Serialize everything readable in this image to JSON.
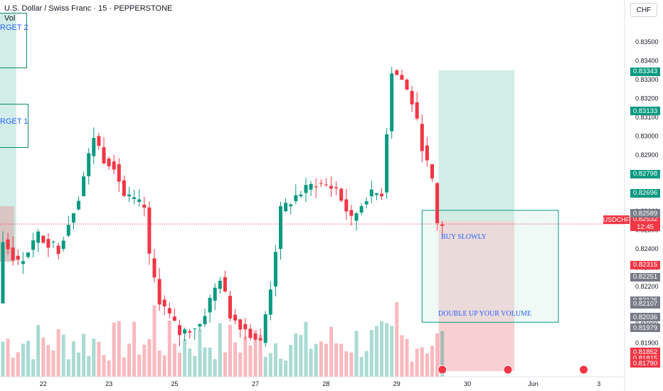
{
  "header": {
    "title": "U.S. Dollar / Swiss Franc · 15 · PEPPERSTONE",
    "volume_label": "Vol",
    "currency_button": "CHF"
  },
  "annotations": {
    "target2": "RGET 2",
    "target1": "RGET 1",
    "buy_slowly": "BUY SLOWLY",
    "double_up": "DOUBLE UP YOUR VOLUME"
  },
  "symbol_tag": "USDCHF",
  "current_price": {
    "price": "0.82532",
    "countdown": "12:45"
  },
  "colors": {
    "up": "#089981",
    "down": "#f23645",
    "profit_zone": "#d1ede6",
    "loss_zone": "#f8d0d3",
    "tag_green": "#089981",
    "tag_red": "#f23645",
    "tag_gray": "#787b86"
  },
  "price_tags": [
    {
      "value": "0.83343",
      "price": 0.83343,
      "kind": "green"
    },
    {
      "value": "0.83133",
      "price": 0.83133,
      "kind": "green"
    },
    {
      "value": "0.82798",
      "price": 0.82798,
      "kind": "green"
    },
    {
      "value": "0.82696",
      "price": 0.82696,
      "kind": "green"
    },
    {
      "value": "0.82589",
      "price": 0.82589,
      "kind": "gray"
    },
    {
      "value": "0.82315",
      "price": 0.82315,
      "kind": "red"
    },
    {
      "value": "0.82251",
      "price": 0.82251,
      "kind": "gray"
    },
    {
      "value": "0.82126",
      "price": 0.82126,
      "kind": "gray"
    },
    {
      "value": "0.82107",
      "price": 0.82107,
      "kind": "gray"
    },
    {
      "value": "0.82036",
      "price": 0.82036,
      "kind": "gray"
    },
    {
      "value": "0.81979",
      "price": 0.81979,
      "kind": "gray"
    },
    {
      "value": "0.81852",
      "price": 0.81852,
      "kind": "red"
    },
    {
      "value": "0.81815",
      "price": 0.81815,
      "kind": "red"
    },
    {
      "value": "0.81790",
      "price": 0.8179,
      "kind": "red"
    }
  ],
  "chart_data": {
    "type": "candlestick",
    "title": "U.S. Dollar / Swiss Franc · 15 · PEPPERSTONE",
    "ylim": [
      0.8172,
      0.8361
    ],
    "y_ticks": [
      "0.83500",
      "0.83400",
      "0.83300",
      "0.83200",
      "0.83100",
      "0.83000",
      "0.82900",
      "0.82800",
      "0.82700",
      "0.82600",
      "0.82500",
      "0.82400",
      "0.82300",
      "0.82200",
      "0.82100",
      "0.82000",
      "0.81900",
      "0.81800"
    ],
    "x_ticks": [
      "22",
      "23",
      "25",
      "27",
      "28",
      "29",
      "30",
      "Jun",
      "3"
    ],
    "x_tick_index": [
      8,
      21,
      34,
      50,
      64,
      78,
      92,
      105,
      118
    ],
    "price_path": [
      {
        "i": 0,
        "p": 0.8211
      },
      {
        "i": 1,
        "p": 0.8245
      },
      {
        "i": 4,
        "p": 0.8232
      },
      {
        "i": 8,
        "p": 0.8247
      },
      {
        "i": 12,
        "p": 0.824
      },
      {
        "i": 16,
        "p": 0.8268
      },
      {
        "i": 19,
        "p": 0.83
      },
      {
        "i": 21,
        "p": 0.8288
      },
      {
        "i": 23,
        "p": 0.8285
      },
      {
        "i": 25,
        "p": 0.8268
      },
      {
        "i": 29,
        "p": 0.8262
      },
      {
        "i": 30,
        "p": 0.8235
      },
      {
        "i": 32,
        "p": 0.8213
      },
      {
        "i": 36,
        "p": 0.8195
      },
      {
        "i": 40,
        "p": 0.82
      },
      {
        "i": 44,
        "p": 0.8225
      },
      {
        "i": 46,
        "p": 0.8205
      },
      {
        "i": 50,
        "p": 0.8195
      },
      {
        "i": 52,
        "p": 0.819
      },
      {
        "i": 54,
        "p": 0.822
      },
      {
        "i": 56,
        "p": 0.826
      },
      {
        "i": 59,
        "p": 0.8268
      },
      {
        "i": 63,
        "p": 0.8275
      },
      {
        "i": 67,
        "p": 0.8272
      },
      {
        "i": 70,
        "p": 0.8255
      },
      {
        "i": 73,
        "p": 0.8268
      },
      {
        "i": 76,
        "p": 0.827
      },
      {
        "i": 78,
        "p": 0.8335
      },
      {
        "i": 80,
        "p": 0.833
      },
      {
        "i": 82,
        "p": 0.8318
      },
      {
        "i": 84,
        "p": 0.8295
      },
      {
        "i": 86,
        "p": 0.8275
      },
      {
        "i": 87,
        "p": 0.8253
      }
    ],
    "last_index": 87,
    "last_price": 0.82532,
    "positions": [
      {
        "label": "long-position-1",
        "x_start": 86,
        "x_end": 101,
        "entry": 0.8255,
        "target": 0.8335,
        "stop": 0.8175
      },
      {
        "label": "long-position-2",
        "x_start": 83,
        "x_end": 110,
        "entry": 0.8255,
        "target": 0.8255,
        "stop": 0.8201
      }
    ]
  }
}
